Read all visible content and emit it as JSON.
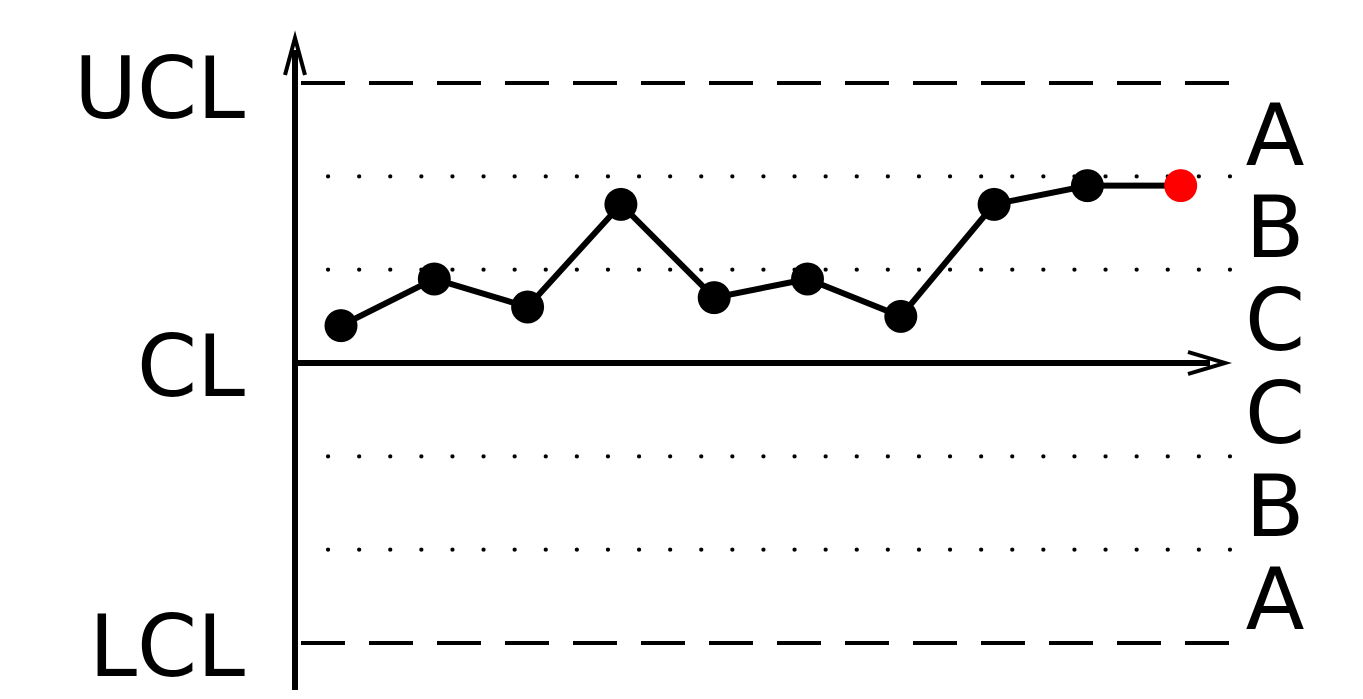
{
  "chart_data": {
    "type": "line",
    "title": "",
    "xlabel": "",
    "ylabel": "",
    "y_labels": {
      "ucl": "UCL",
      "cl": "CL",
      "lcl": "LCL"
    },
    "zone_labels": [
      "A",
      "B",
      "C",
      "C",
      "B",
      "A"
    ],
    "ylim": [
      -3,
      3
    ],
    "control_lines": {
      "ucl": 3,
      "cl": 0,
      "lcl": -3
    },
    "zone_boundaries": [
      2,
      1,
      -1,
      -2
    ],
    "grid": false,
    "x": [
      1,
      2,
      3,
      4,
      5,
      6,
      7,
      8,
      9,
      10
    ],
    "series": [
      {
        "values": [
          0.4,
          0.9,
          0.6,
          1.7,
          0.7,
          0.9,
          0.5,
          1.7,
          1.9,
          1.9
        ]
      }
    ],
    "highlight_index": 9,
    "colors": {
      "line": "#000000",
      "point": "#000000",
      "highlight": "#ff0000"
    }
  }
}
